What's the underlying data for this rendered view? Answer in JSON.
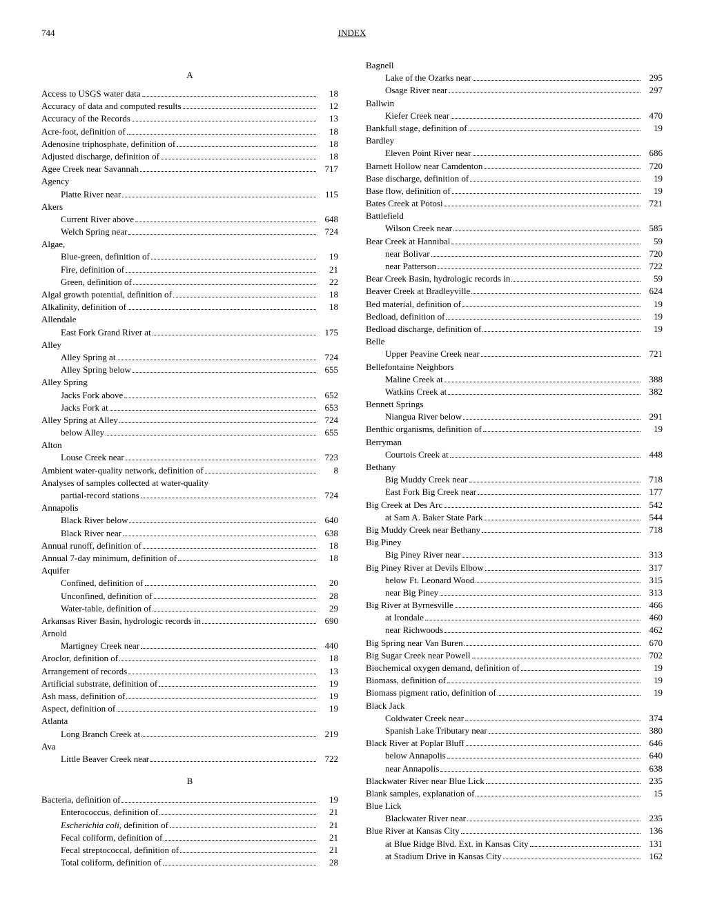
{
  "pageNumber": "744",
  "headerTitle": "INDEX",
  "sections": {
    "A": "A",
    "B": "B"
  },
  "col1": [
    {
      "section": "A"
    },
    {
      "label": "Access to USGS water data",
      "page": "18",
      "indent": 0
    },
    {
      "label": "Accuracy of data and computed results",
      "page": "12",
      "indent": 0
    },
    {
      "label": "Accuracy of the Records",
      "page": "13",
      "indent": 0
    },
    {
      "label": "Acre-foot, definition of",
      "page": "18",
      "indent": 0
    },
    {
      "label": "Adenosine triphosphate, definition of",
      "page": "18",
      "indent": 0
    },
    {
      "label": "Adjusted discharge, definition of",
      "page": "18",
      "indent": 0
    },
    {
      "label": "Agee Creek near Savannah",
      "page": "717",
      "indent": 0
    },
    {
      "label": "Agency",
      "indent": 0,
      "noPage": true
    },
    {
      "label": "Platte River near",
      "page": "115",
      "indent": 1
    },
    {
      "label": "Akers",
      "indent": 0,
      "noPage": true
    },
    {
      "label": "Current River above",
      "page": "648",
      "indent": 1
    },
    {
      "label": "Welch Spring near",
      "page": "724",
      "indent": 1
    },
    {
      "label": "Algae,",
      "indent": 0,
      "noPage": true
    },
    {
      "label": "Blue-green, definition of",
      "page": "19",
      "indent": 1
    },
    {
      "label": "Fire, definition of",
      "page": "21",
      "indent": 1
    },
    {
      "label": "Green, definition of",
      "page": "22",
      "indent": 1
    },
    {
      "label": "Algal growth potential, definition of",
      "page": "18",
      "indent": 0
    },
    {
      "label": "Alkalinity, definition of",
      "page": "18",
      "indent": 0
    },
    {
      "label": "Allendale",
      "indent": 0,
      "noPage": true
    },
    {
      "label": "East Fork Grand River at",
      "page": "175",
      "indent": 1
    },
    {
      "label": "Alley",
      "indent": 0,
      "noPage": true
    },
    {
      "label": "Alley Spring at",
      "page": "724",
      "indent": 1
    },
    {
      "label": "Alley Spring below",
      "page": "655",
      "indent": 1
    },
    {
      "label": "Alley Spring",
      "indent": 0,
      "noPage": true
    },
    {
      "label": "Jacks Fork above",
      "page": "652",
      "indent": 1
    },
    {
      "label": "Jacks Fork at",
      "page": "653",
      "indent": 1
    },
    {
      "label": "Alley Spring at Alley",
      "page": "724",
      "indent": 0
    },
    {
      "label": "below Alley",
      "page": "655",
      "indent": 1
    },
    {
      "label": "Alton",
      "indent": 0,
      "noPage": true
    },
    {
      "label": "Louse Creek near",
      "page": "723",
      "indent": 1
    },
    {
      "label": "Ambient water-quality network, definition of",
      "page": "8",
      "indent": 0
    },
    {
      "label": "Analyses of samples collected at water-quality",
      "indent": 0,
      "noPage": true
    },
    {
      "label": "partial-record stations",
      "page": "724",
      "indent": 1
    },
    {
      "label": "Annapolis",
      "indent": 0,
      "noPage": true
    },
    {
      "label": "Black River below",
      "page": "640",
      "indent": 1
    },
    {
      "label": "Black River near",
      "page": "638",
      "indent": 1
    },
    {
      "label": "Annual runoff, definition of",
      "page": "18",
      "indent": 0
    },
    {
      "label": "Annual 7-day minimum, definition of",
      "page": "18",
      "indent": 0
    },
    {
      "label": "Aquifer",
      "indent": 0,
      "noPage": true
    },
    {
      "label": "Confined, definition of",
      "page": "20",
      "indent": 1
    },
    {
      "label": "Unconfined, definition of",
      "page": "28",
      "indent": 1
    },
    {
      "label": "Water-table, definition of",
      "page": "29",
      "indent": 1
    },
    {
      "label": "Arkansas River Basin, hydrologic records in",
      "page": "690",
      "indent": 0
    },
    {
      "label": "Arnold",
      "indent": 0,
      "noPage": true
    },
    {
      "label": "Martigney Creek near",
      "page": "440",
      "indent": 1
    },
    {
      "label": "Aroclor, definition of",
      "page": "18",
      "indent": 0
    },
    {
      "label": "Arrangement of records",
      "page": "13",
      "indent": 0
    },
    {
      "label": "Artificial substrate, definition of",
      "page": "19",
      "indent": 0
    },
    {
      "label": "Ash mass, definition of",
      "page": "19",
      "indent": 0
    },
    {
      "label": "Aspect, definition of",
      "page": "19",
      "indent": 0
    },
    {
      "label": "Atlanta",
      "indent": 0,
      "noPage": true
    },
    {
      "label": "Long Branch Creek at",
      "page": "219",
      "indent": 1
    },
    {
      "label": "Ava",
      "indent": 0,
      "noPage": true
    },
    {
      "label": "Little Beaver Creek near",
      "page": "722",
      "indent": 1
    },
    {
      "section": "B"
    },
    {
      "label": "Bacteria, definition of",
      "page": "19",
      "indent": 0
    },
    {
      "label": "Enterococcus, definition of",
      "page": "21",
      "indent": 1
    },
    {
      "label": "Escherichia coli, definition of",
      "page": "21",
      "indent": 1,
      "italicPrefix": "Escherichia coli",
      "suffix": ", definition of"
    },
    {
      "label": "Fecal coliform, definition of",
      "page": "21",
      "indent": 1
    },
    {
      "label": "Fecal streptococcal, definition of",
      "page": "21",
      "indent": 1
    },
    {
      "label": "Total coliform, definition of",
      "page": "28",
      "indent": 1
    }
  ],
  "col2": [
    {
      "label": "Bagnell",
      "indent": 0,
      "noPage": true
    },
    {
      "label": "Lake of the Ozarks near",
      "page": "295",
      "indent": 1
    },
    {
      "label": "Osage River near",
      "page": "297",
      "indent": 1
    },
    {
      "label": "Ballwin",
      "indent": 0,
      "noPage": true
    },
    {
      "label": "Kiefer Creek near",
      "page": "470",
      "indent": 1
    },
    {
      "label": "Bankfull stage, definition of",
      "page": "19",
      "indent": 0
    },
    {
      "label": "Bardley",
      "indent": 0,
      "noPage": true
    },
    {
      "label": "Eleven Point River near",
      "page": "686",
      "indent": 1
    },
    {
      "label": "Barnett Hollow near Camdenton",
      "page": "720",
      "indent": 0
    },
    {
      "label": "Base discharge, definition of",
      "page": "19",
      "indent": 0
    },
    {
      "label": "Base flow, definition of",
      "page": "19",
      "indent": 0
    },
    {
      "label": "Bates Creek at Potosi",
      "page": "721",
      "indent": 0
    },
    {
      "label": "Battlefield",
      "indent": 0,
      "noPage": true
    },
    {
      "label": "Wilson Creek near",
      "page": "585",
      "indent": 1
    },
    {
      "label": "Bear Creek at Hannibal",
      "page": "59",
      "indent": 0
    },
    {
      "label": "near Bolivar",
      "page": "720",
      "indent": 1
    },
    {
      "label": "near Patterson",
      "page": "722",
      "indent": 1
    },
    {
      "label": "Bear Creek Basin, hydrologic records in",
      "page": "59",
      "indent": 0
    },
    {
      "label": "Beaver Creek at Bradleyville",
      "page": "624",
      "indent": 0
    },
    {
      "label": "Bed material, definition of",
      "page": "19",
      "indent": 0
    },
    {
      "label": "Bedload, definition of",
      "page": "19",
      "indent": 0
    },
    {
      "label": "Bedload discharge, definition of",
      "page": "19",
      "indent": 0
    },
    {
      "label": "Belle",
      "indent": 0,
      "noPage": true
    },
    {
      "label": "Upper Peavine Creek near",
      "page": "721",
      "indent": 1
    },
    {
      "label": "Bellefontaine Neighbors",
      "indent": 0,
      "noPage": true
    },
    {
      "label": "Maline Creek at",
      "page": "388",
      "indent": 1
    },
    {
      "label": "Watkins Creek at",
      "page": "382",
      "indent": 1
    },
    {
      "label": "Bennett Springs",
      "indent": 0,
      "noPage": true
    },
    {
      "label": "Niangua River below",
      "page": "291",
      "indent": 1
    },
    {
      "label": "Benthic organisms, definition of",
      "page": "19",
      "indent": 0
    },
    {
      "label": "Berryman",
      "indent": 0,
      "noPage": true
    },
    {
      "label": "Courtois Creek at",
      "page": "448",
      "indent": 1
    },
    {
      "label": "Bethany",
      "indent": 0,
      "noPage": true
    },
    {
      "label": "Big Muddy Creek near",
      "page": "718",
      "indent": 1
    },
    {
      "label": "East Fork Big Creek near",
      "page": "177",
      "indent": 1
    },
    {
      "label": "Big Creek at Des Arc",
      "page": "542",
      "indent": 0
    },
    {
      "label": "at Sam A. Baker State Park",
      "page": "544",
      "indent": 1
    },
    {
      "label": "Big Muddy Creek near Bethany",
      "page": "718",
      "indent": 0
    },
    {
      "label": "Big Piney",
      "indent": 0,
      "noPage": true
    },
    {
      "label": "Big Piney River near",
      "page": "313",
      "indent": 1
    },
    {
      "label": "Big Piney River at Devils Elbow",
      "page": "317",
      "indent": 0
    },
    {
      "label": "below Ft. Leonard Wood",
      "page": "315",
      "indent": 1
    },
    {
      "label": "near Big Piney",
      "page": "313",
      "indent": 1
    },
    {
      "label": "Big River at Byrnesville",
      "page": "466",
      "indent": 0
    },
    {
      "label": "at Irondale",
      "page": "460",
      "indent": 1
    },
    {
      "label": "near Richwoods",
      "page": "462",
      "indent": 1
    },
    {
      "label": "Big Spring near Van Buren",
      "page": "670",
      "indent": 0
    },
    {
      "label": "Big Sugar Creek near Powell",
      "page": "702",
      "indent": 0
    },
    {
      "label": "Biochemical oxygen demand, definition of",
      "page": "19",
      "indent": 0
    },
    {
      "label": "Biomass, definition of",
      "page": "19",
      "indent": 0
    },
    {
      "label": "Biomass pigment ratio, definition of",
      "page": "19",
      "indent": 0
    },
    {
      "label": "Black Jack",
      "indent": 0,
      "noPage": true
    },
    {
      "label": "Coldwater Creek near",
      "page": "374",
      "indent": 1
    },
    {
      "label": "Spanish Lake Tributary near",
      "page": "380",
      "indent": 1
    },
    {
      "label": "Black River at Poplar Bluff",
      "page": "646",
      "indent": 0
    },
    {
      "label": "below Annapolis",
      "page": "640",
      "indent": 1
    },
    {
      "label": "near Annapolis",
      "page": "638",
      "indent": 1
    },
    {
      "label": "Blackwater River near Blue Lick",
      "page": "235",
      "indent": 0
    },
    {
      "label": "Blank samples, explanation of",
      "page": "15",
      "indent": 0
    },
    {
      "label": "Blue Lick",
      "indent": 0,
      "noPage": true
    },
    {
      "label": "Blackwater River near",
      "page": "235",
      "indent": 1
    },
    {
      "label": "Blue River at Kansas City",
      "page": "136",
      "indent": 0
    },
    {
      "label": "at Blue Ridge Blvd. Ext. in Kansas City",
      "page": "131",
      "indent": 1
    },
    {
      "label": "at Stadium Drive in Kansas City",
      "page": "162",
      "indent": 1
    }
  ]
}
